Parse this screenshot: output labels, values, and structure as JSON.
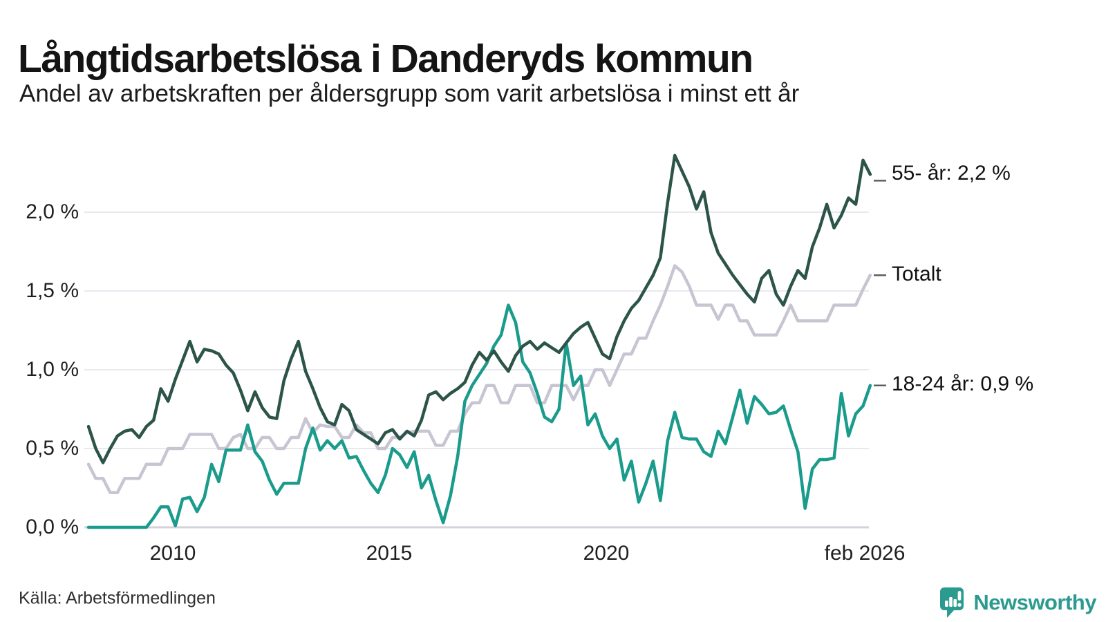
{
  "header": {
    "title": "Långtidsarbetslösa i Danderyds kommun",
    "subtitle": "Andel av arbetskraften per åldersgrupp som varit arbetslösa i minst ett år"
  },
  "chart_data": {
    "type": "line",
    "title": "Långtidsarbetslösa i Danderyds kommun",
    "subtitle": "Andel av arbetskraften per åldersgrupp som varit arbetslösa i minst ett år",
    "xlabel": "",
    "ylabel": "",
    "y_unit": "%",
    "x_range": [
      2008.083,
      2026.083
    ],
    "y_range": [
      0,
      2.45
    ],
    "grid": true,
    "legend_position": "end-of-line-labels-right",
    "x_ticks": [
      {
        "label": "2010",
        "value": 2010
      },
      {
        "label": "2015",
        "value": 2015
      },
      {
        "label": "2020",
        "value": 2020
      },
      {
        "label": "feb 2026",
        "value": 2026.083
      }
    ],
    "y_ticks": [
      {
        "label": "0,0 %",
        "value": 0
      },
      {
        "label": "0,5 %",
        "value": 0.5
      },
      {
        "label": "1,0 %",
        "value": 1
      },
      {
        "label": "1,5 %",
        "value": 1.5
      },
      {
        "label": "2,0 %",
        "value": 2
      }
    ],
    "x": [
      2008.083,
      2008.25,
      2008.417,
      2008.583,
      2008.75,
      2008.917,
      2009.083,
      2009.25,
      2009.417,
      2009.583,
      2009.75,
      2009.917,
      2010.083,
      2010.25,
      2010.417,
      2010.583,
      2010.75,
      2010.917,
      2011.083,
      2011.25,
      2011.417,
      2011.583,
      2011.75,
      2011.917,
      2012.083,
      2012.25,
      2012.417,
      2012.583,
      2012.75,
      2012.917,
      2013.083,
      2013.25,
      2013.417,
      2013.583,
      2013.75,
      2013.917,
      2014.083,
      2014.25,
      2014.417,
      2014.583,
      2014.75,
      2014.917,
      2015.083,
      2015.25,
      2015.417,
      2015.583,
      2015.75,
      2015.917,
      2016.083,
      2016.25,
      2016.417,
      2016.583,
      2016.75,
      2016.917,
      2017.083,
      2017.25,
      2017.417,
      2017.583,
      2017.75,
      2017.917,
      2018.083,
      2018.25,
      2018.417,
      2018.583,
      2018.75,
      2018.917,
      2019.083,
      2019.25,
      2019.417,
      2019.583,
      2019.75,
      2019.917,
      2020.083,
      2020.25,
      2020.417,
      2020.583,
      2020.75,
      2020.917,
      2021.083,
      2021.25,
      2021.417,
      2021.583,
      2021.75,
      2021.917,
      2022.083,
      2022.25,
      2022.417,
      2022.583,
      2022.75,
      2022.917,
      2023.083,
      2023.25,
      2023.417,
      2023.583,
      2023.75,
      2023.917,
      2024.083,
      2024.25,
      2024.417,
      2024.583,
      2024.75,
      2024.917,
      2025.083,
      2025.25,
      2025.417,
      2025.583,
      2025.75,
      2025.917,
      2026.083
    ],
    "series": [
      {
        "name": "Totalt",
        "end_label": "Totalt",
        "end_value": 1.6,
        "color": "#C8C5D3",
        "values": [
          0.4,
          0.31,
          0.31,
          0.22,
          0.22,
          0.31,
          0.31,
          0.31,
          0.4,
          0.4,
          0.4,
          0.5,
          0.5,
          0.5,
          0.59,
          0.59,
          0.59,
          0.59,
          0.5,
          0.5,
          0.57,
          0.59,
          0.5,
          0.5,
          0.57,
          0.57,
          0.5,
          0.5,
          0.57,
          0.57,
          0.69,
          0.6,
          0.65,
          0.64,
          0.64,
          0.57,
          0.57,
          0.65,
          0.6,
          0.6,
          0.5,
          0.5,
          0.57,
          0.57,
          0.6,
          0.61,
          0.61,
          0.61,
          0.52,
          0.52,
          0.61,
          0.61,
          0.72,
          0.79,
          0.79,
          0.9,
          0.9,
          0.79,
          0.79,
          0.9,
          0.9,
          0.9,
          0.79,
          0.79,
          0.9,
          0.9,
          0.9,
          0.81,
          0.9,
          0.9,
          1.0,
          1.0,
          0.9,
          1.0,
          1.1,
          1.1,
          1.2,
          1.2,
          1.31,
          1.41,
          1.53,
          1.66,
          1.62,
          1.53,
          1.41,
          1.41,
          1.41,
          1.32,
          1.41,
          1.41,
          1.31,
          1.31,
          1.22,
          1.22,
          1.22,
          1.22,
          1.31,
          1.41,
          1.31,
          1.31,
          1.31,
          1.31,
          1.31,
          1.41,
          1.41,
          1.41,
          1.41,
          1.51,
          1.6
        ]
      },
      {
        "name": "18-24 år",
        "end_label": "18-24 år: 0,9 %",
        "end_value": 0.9,
        "color": "#1A9B8C",
        "values": [
          0.0,
          0.0,
          0.0,
          0.0,
          0.0,
          0.0,
          0.0,
          0.0,
          0.0,
          0.06,
          0.13,
          0.13,
          0.01,
          0.18,
          0.19,
          0.1,
          0.19,
          0.4,
          0.29,
          0.49,
          0.49,
          0.49,
          0.65,
          0.48,
          0.42,
          0.3,
          0.21,
          0.28,
          0.28,
          0.28,
          0.5,
          0.63,
          0.49,
          0.55,
          0.5,
          0.55,
          0.44,
          0.45,
          0.36,
          0.28,
          0.22,
          0.33,
          0.5,
          0.46,
          0.38,
          0.48,
          0.25,
          0.33,
          0.17,
          0.03,
          0.2,
          0.45,
          0.8,
          0.9,
          0.97,
          1.04,
          1.15,
          1.22,
          1.41,
          1.3,
          1.05,
          0.98,
          0.85,
          0.7,
          0.67,
          0.75,
          1.17,
          0.9,
          0.96,
          0.65,
          0.72,
          0.58,
          0.5,
          0.56,
          0.3,
          0.42,
          0.16,
          0.28,
          0.42,
          0.17,
          0.55,
          0.73,
          0.57,
          0.56,
          0.56,
          0.48,
          0.45,
          0.61,
          0.53,
          0.7,
          0.87,
          0.66,
          0.83,
          0.78,
          0.72,
          0.73,
          0.77,
          0.62,
          0.48,
          0.12,
          0.37,
          0.43,
          0.43,
          0.44,
          0.85,
          0.58,
          0.72,
          0.77,
          0.9
        ]
      },
      {
        "name": "55- år",
        "end_label": "55- år: 2,2 %",
        "end_value": 2.2,
        "color": "#2C5449",
        "values": [
          0.64,
          0.5,
          0.41,
          0.5,
          0.58,
          0.61,
          0.62,
          0.57,
          0.64,
          0.68,
          0.88,
          0.8,
          0.94,
          1.06,
          1.18,
          1.05,
          1.13,
          1.12,
          1.1,
          1.03,
          0.98,
          0.87,
          0.74,
          0.86,
          0.76,
          0.7,
          0.69,
          0.93,
          1.07,
          1.18,
          0.99,
          0.88,
          0.76,
          0.67,
          0.65,
          0.78,
          0.74,
          0.62,
          0.59,
          0.56,
          0.53,
          0.6,
          0.62,
          0.56,
          0.61,
          0.58,
          0.68,
          0.84,
          0.86,
          0.81,
          0.85,
          0.88,
          0.92,
          1.03,
          1.11,
          1.06,
          1.12,
          1.05,
          0.99,
          1.09,
          1.15,
          1.18,
          1.13,
          1.17,
          1.14,
          1.11,
          1.17,
          1.23,
          1.27,
          1.3,
          1.2,
          1.1,
          1.07,
          1.21,
          1.31,
          1.39,
          1.44,
          1.52,
          1.6,
          1.71,
          2.06,
          2.36,
          2.26,
          2.16,
          2.02,
          2.13,
          1.87,
          1.74,
          1.67,
          1.6,
          1.54,
          1.48,
          1.43,
          1.58,
          1.63,
          1.48,
          1.41,
          1.53,
          1.63,
          1.58,
          1.78,
          1.9,
          2.05,
          1.9,
          1.98,
          2.09,
          2.05,
          2.33,
          2.24
        ]
      }
    ]
  },
  "footer": {
    "source": "Källa: Arbetsförmedlingen",
    "brand": "Newsworthy"
  },
  "colors": {
    "series_55": "#2C5449",
    "series_total": "#C8C5D3",
    "series_18_24": "#1A9B8C",
    "gridline": "#EAE8EF",
    "axis_line": "#D4D2DB",
    "label_dash": "#5E5E5E",
    "brand_teal": "#2B9A8F",
    "text": "#141414"
  }
}
